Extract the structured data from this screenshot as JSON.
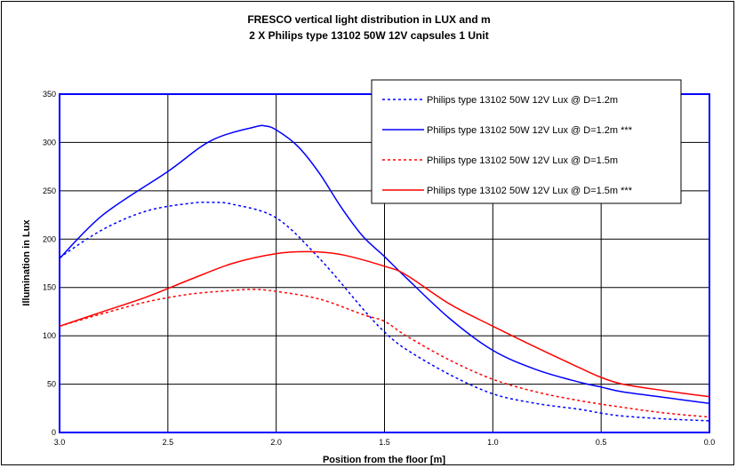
{
  "chart_data": {
    "type": "line",
    "title": "FRESCO vertical light distribution in LUX and m",
    "subtitle": "2 X Philips type 13102 50W 12V capsules 1 Unit",
    "xlabel": "Position from the floor [m]",
    "ylabel": "Illumination in Lux",
    "xlim": [
      3.0,
      0.0
    ],
    "ylim": [
      0,
      350
    ],
    "x_reversed": true,
    "x_ticks": [
      "3.0",
      "2.5",
      "2.0",
      "1.5",
      "1.0",
      "0.5",
      "0.0"
    ],
    "y_ticks": [
      "0",
      "50",
      "100",
      "150",
      "200",
      "250",
      "300",
      "350"
    ],
    "grid": true,
    "legend_position": "top-right",
    "series": [
      {
        "name": "Philips type 13102 50W 12V Lux @ D=1.2m",
        "color": "#0000ff",
        "style": "dotted",
        "x": [
          3.0,
          2.8,
          2.6,
          2.4,
          2.3,
          2.2,
          2.0,
          1.8,
          1.6,
          1.5,
          1.4,
          1.2,
          1.0,
          0.8,
          0.6,
          0.5,
          0.4,
          0.2,
          0.0
        ],
        "y": [
          181,
          210,
          229,
          237,
          238,
          236,
          222,
          180,
          128,
          104,
          86,
          60,
          40,
          30,
          24,
          20,
          17,
          14,
          12
        ]
      },
      {
        "name": "Philips type 13102 50W 12V Lux @ D=1.2m ***",
        "color": "#0000ff",
        "style": "solid",
        "x": [
          3.0,
          2.8,
          2.5,
          2.3,
          2.1,
          2.05,
          2.0,
          1.9,
          1.8,
          1.7,
          1.6,
          1.5,
          1.4,
          1.2,
          1.0,
          0.8,
          0.6,
          0.5,
          0.4,
          0.2,
          0.0
        ],
        "y": [
          180,
          225,
          270,
          302,
          316,
          317,
          313,
          296,
          268,
          233,
          203,
          182,
          160,
          118,
          85,
          65,
          52,
          47,
          42,
          36,
          30
        ]
      },
      {
        "name": "Philips type 13102 50W 12V Lux @ D=1.5m",
        "color": "#ff0000",
        "style": "dotted",
        "x": [
          3.0,
          2.8,
          2.6,
          2.4,
          2.2,
          2.1,
          2.0,
          1.8,
          1.6,
          1.5,
          1.4,
          1.2,
          1.0,
          0.8,
          0.6,
          0.4,
          0.2,
          0.0
        ],
        "y": [
          110,
          123,
          135,
          143,
          147,
          148,
          146,
          138,
          122,
          115,
          100,
          75,
          55,
          42,
          33,
          26,
          20,
          16
        ]
      },
      {
        "name": "Philips  type 13102 50W 12V Lux @ D=1.5m ***",
        "color": "#ff0000",
        "style": "solid",
        "x": [
          3.0,
          2.8,
          2.6,
          2.4,
          2.2,
          2.0,
          1.85,
          1.7,
          1.5,
          1.4,
          1.2,
          1.0,
          0.8,
          0.6,
          0.5,
          0.4,
          0.2,
          0.0
        ],
        "y": [
          110,
          125,
          140,
          158,
          175,
          185,
          187,
          184,
          172,
          163,
          133,
          110,
          88,
          67,
          57,
          50,
          43,
          37
        ]
      }
    ]
  }
}
